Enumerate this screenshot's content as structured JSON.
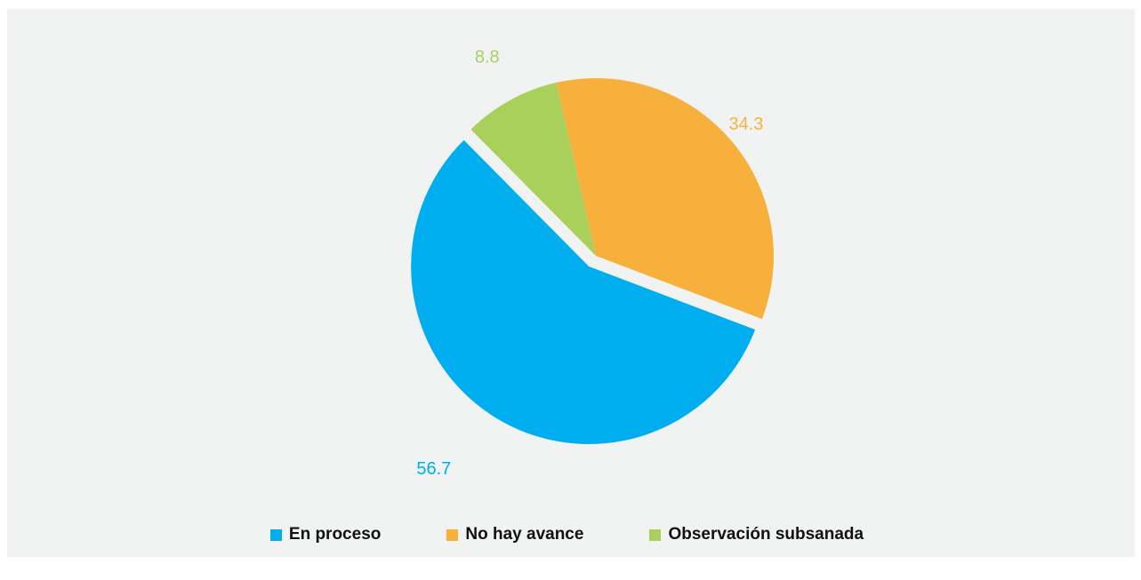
{
  "chart_data": {
    "type": "pie",
    "title": "",
    "series": [
      {
        "name": "En proceso",
        "value": 56.7,
        "color": "#00adee",
        "label": "56.7",
        "exploded": true
      },
      {
        "name": "No hay avance",
        "value": 34.3,
        "color": "#f7b03c",
        "label": "34.3",
        "exploded": false
      },
      {
        "name": "Observación subsanada",
        "value": 8.8,
        "color": "#a8d05a",
        "label": "8.8",
        "exploded": false
      }
    ],
    "legend_position": "bottom"
  },
  "colors": {
    "background": "#f1f3f3",
    "legend_text": "#111111"
  }
}
